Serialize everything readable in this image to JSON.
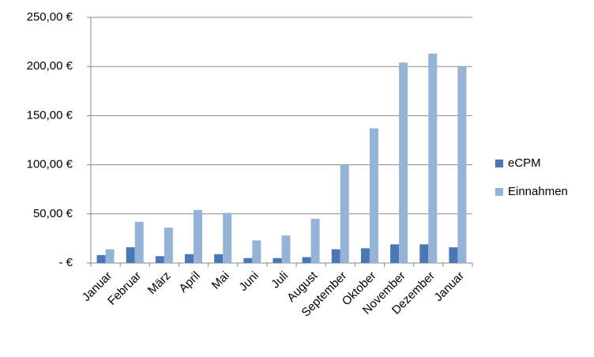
{
  "chart_data": {
    "type": "bar",
    "categories": [
      "Januar",
      "Februar",
      "März",
      "April",
      "Mai",
      "Juni",
      "Juli",
      "August",
      "September",
      "Oktober",
      "November",
      "Dezember",
      "Januar"
    ],
    "series": [
      {
        "name": "eCPM",
        "color": "#4a78b5",
        "values": [
          8,
          16,
          7,
          9,
          9,
          5,
          5,
          6,
          14,
          15,
          19,
          19,
          16
        ]
      },
      {
        "name": "Einnahmen",
        "color": "#95b3d7",
        "values": [
          14,
          42,
          36,
          54,
          51,
          23,
          28,
          45,
          100,
          137,
          204,
          213,
          200
        ]
      }
    ],
    "ylim": [
      0,
      250
    ],
    "yticks": [
      {
        "value": 0,
        "label": "-   €"
      },
      {
        "value": 50,
        "label": "50,00 €"
      },
      {
        "value": 100,
        "label": "100,00 €"
      },
      {
        "value": 150,
        "label": "150,00 €"
      },
      {
        "value": 200,
        "label": "200,00 €"
      },
      {
        "value": 250,
        "label": "250,00 €"
      }
    ],
    "grid": true,
    "legend": "right"
  }
}
